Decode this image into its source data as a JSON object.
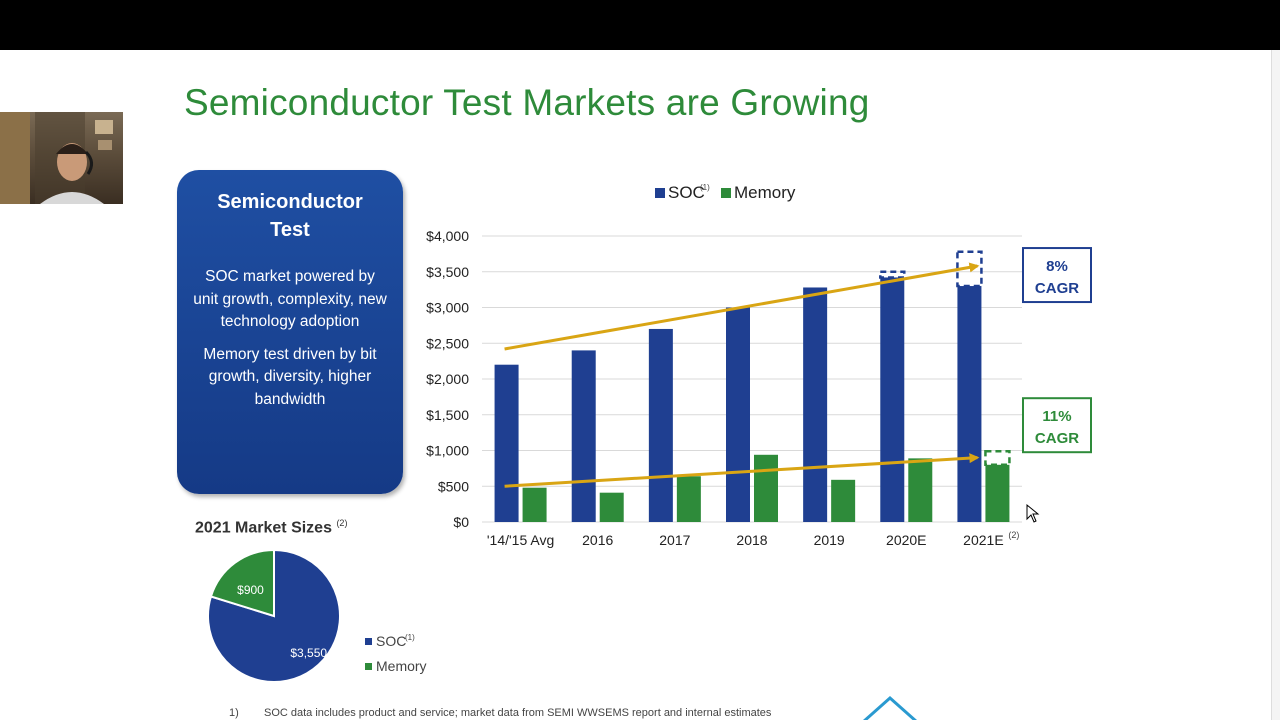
{
  "slide": {
    "title": "Semiconductor Test Markets are Growing",
    "box": {
      "heading": "Semiconductor Test",
      "para1": "SOC market powered by unit growth, complexity, new technology adoption",
      "para2": "Memory test driven by bit growth, diversity, higher bandwidth"
    },
    "pie": {
      "heading": "2021 Market Sizes",
      "heading_note": "(2)",
      "slices": [
        {
          "name": "SOC",
          "note": "(1)",
          "label": "$3,550",
          "value": 3550,
          "color": "#1f3f91"
        },
        {
          "name": "Memory",
          "note": "",
          "label": "$900",
          "value": 900,
          "color": "#2e8b3a"
        }
      ]
    },
    "footnote": {
      "num": "1)",
      "text": "SOC data includes product and service; market data from SEMI WWSEMS report and internal estimates"
    }
  },
  "chart_data": {
    "type": "bar",
    "legend": [
      {
        "name": "SOC",
        "note": "(1)",
        "color": "#1f3f91"
      },
      {
        "name": "Memory",
        "note": "",
        "color": "#2e8b3a"
      }
    ],
    "legend_position": "top",
    "categories": [
      "'14/'15 Avg",
      "2016",
      "2017",
      "2018",
      "2019",
      "2020E",
      "2021E"
    ],
    "last_category_note": "(2)",
    "series": [
      {
        "name": "SOC",
        "values": [
          2200,
          2400,
          2700,
          3000,
          3280,
          3420,
          3300
        ],
        "color": "#1f3f91"
      },
      {
        "name": "Memory",
        "values": [
          480,
          410,
          640,
          940,
          590,
          890,
          800
        ],
        "color": "#2e8b3a"
      }
    ],
    "dashed_extensions": [
      {
        "series": "SOC",
        "category": "2020E",
        "from": 3420,
        "to": 3500
      },
      {
        "series": "SOC",
        "category": "2021E",
        "from": 3300,
        "to": 3780
      },
      {
        "series": "Memory",
        "category": "2021E",
        "from": 800,
        "to": 990
      }
    ],
    "trend_lines": [
      {
        "color": "#d9a514",
        "from": {
          "category": "'14/'15 Avg",
          "value": 2420
        },
        "to": {
          "category": "2021E",
          "value": 3580
        }
      },
      {
        "color": "#d9a514",
        "from": {
          "category": "'14/'15 Avg",
          "value": 500
        },
        "to": {
          "category": "2021E",
          "value": 900
        }
      }
    ],
    "callouts": [
      {
        "pct": "8%",
        "label": "CAGR",
        "color": "#1f3f91",
        "at_value": 3300
      },
      {
        "pct": "11%",
        "label": "CAGR",
        "color": "#2e8b3a",
        "at_value": 1200
      }
    ],
    "yticks": [
      0,
      500,
      1000,
      1500,
      2000,
      2500,
      3000,
      3500,
      4000
    ],
    "ytick_labels": [
      "$0",
      "$500",
      "$1,000",
      "$1,500",
      "$2,000",
      "$2,500",
      "$3,000",
      "$3,500",
      "$4,000"
    ],
    "ylim": [
      0,
      4000
    ],
    "grid": true
  }
}
